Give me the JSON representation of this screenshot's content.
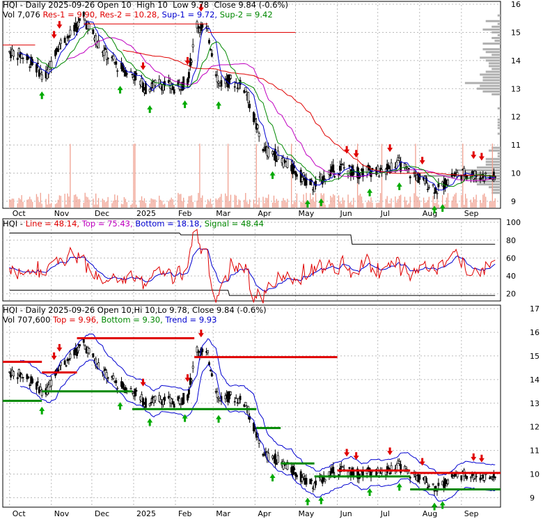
{
  "panels": {
    "top": {
      "line1": {
        "a": "HQI - Daily 2025-09-26 Open 10  High 10  Low 9.78  Close 9.84 (-0.6%)"
      },
      "line2": {
        "vol": "Vol 7,076",
        "res1": "Res-1 = 9.90,",
        "res2": "Res-2 = 10.28,",
        "sup1": "Sup-1 = 9.72,",
        "sup2": "Sup-2 = 9.42"
      },
      "yticks": [
        "16",
        "15",
        "14",
        "13",
        "12",
        "11",
        "10",
        "9"
      ]
    },
    "middle": {
      "hq": "HQI - ",
      "line": "Line = 48.14,",
      "top": "Top = 75.43,",
      "bottom": "Bottom = 18.18,",
      "signal": "Signal = 48.44",
      "yticks": [
        "100",
        "80",
        "60",
        "40",
        "20"
      ]
    },
    "bottom": {
      "line1": "HQI - Daily 2025-09-26 Open 10,Hi 10,Lo 9.78, Close 9.84 (-0.6%)",
      "vol": "Vol 707,600",
      "top": "Top = 9.96,",
      "bottom": "Bottom = 9.30,",
      "trend": "Trend = 9.93",
      "yticks": [
        "17",
        "16",
        "15",
        "14",
        "13",
        "12",
        "11",
        "10",
        "9"
      ]
    }
  },
  "xaxis": [
    "Oct",
    "Nov",
    "Dec",
    "2025",
    "Feb",
    "Mar",
    "Apr",
    "May",
    "Jun",
    "Jul",
    "Aug",
    "Sep"
  ],
  "colors": {
    "res": "#e00000",
    "mag": "#c000c0",
    "sup": "#0000d0",
    "sup2": "#008800",
    "up_arrow": "#00aa00",
    "down_arrow": "#e00000"
  },
  "chart_data": {
    "type": "candlestick",
    "title": "HQI - Daily 2025-09-26",
    "close_path": [
      [
        "2024-10-01",
        14.3
      ],
      [
        "2024-10-10",
        14.2
      ],
      [
        "2024-10-20",
        13.8
      ],
      [
        "2024-10-28",
        13.4
      ],
      [
        "2024-11-05",
        14.5
      ],
      [
        "2024-11-15",
        14.9
      ],
      [
        "2024-11-25",
        15.5
      ],
      [
        "2024-12-01",
        15.0
      ],
      [
        "2024-12-10",
        14.3
      ],
      [
        "2024-12-20",
        13.8
      ],
      [
        "2025-01-01",
        13.5
      ],
      [
        "2025-01-10",
        13.0
      ],
      [
        "2025-01-20",
        13.2
      ],
      [
        "2025-02-01",
        13.0
      ],
      [
        "2025-02-10",
        13.3
      ],
      [
        "2025-02-17",
        15.3
      ],
      [
        "2025-02-25",
        15.0
      ],
      [
        "2025-03-05",
        13.2
      ],
      [
        "2025-03-15",
        13.3
      ],
      [
        "2025-03-25",
        13.0
      ],
      [
        "2025-04-01",
        11.8
      ],
      [
        "2025-04-08",
        10.8
      ],
      [
        "2025-04-15",
        10.7
      ],
      [
        "2025-04-25",
        10.3
      ],
      [
        "2025-05-05",
        9.9
      ],
      [
        "2025-05-15",
        9.5
      ],
      [
        "2025-05-25",
        10.0
      ],
      [
        "2025-06-05",
        10.2
      ],
      [
        "2025-06-15",
        10.0
      ],
      [
        "2025-06-25",
        10.1
      ],
      [
        "2025-07-05",
        10.0
      ],
      [
        "2025-07-15",
        10.4
      ],
      [
        "2025-07-25",
        10.0
      ],
      [
        "2025-08-05",
        9.7
      ],
      [
        "2025-08-15",
        9.4
      ],
      [
        "2025-08-25",
        9.9
      ],
      [
        "2025-09-05",
        10.0
      ],
      [
        "2025-09-15",
        9.9
      ],
      [
        "2025-09-26",
        9.84
      ]
    ],
    "ohlc_last": {
      "date": "2025-09-26",
      "open": 10,
      "high": 10,
      "low": 9.78,
      "close": 9.84
    },
    "levels": {
      "res1": 9.9,
      "res2": 10.28,
      "sup1": 9.72,
      "sup2": 9.42
    },
    "oscillator": {
      "line": 48.14,
      "top": 75.43,
      "bottom": 18.18,
      "signal": 48.44
    },
    "bottom_levels": {
      "top": 9.96,
      "bottom": 9.3,
      "trend": 9.93
    },
    "volume_last": 707600
  }
}
